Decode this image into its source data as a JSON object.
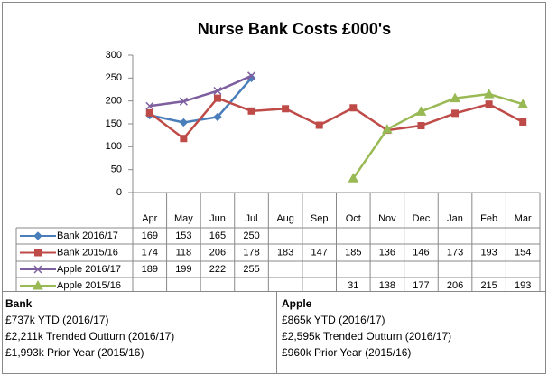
{
  "chart_data": {
    "type": "line",
    "title": "Nurse Bank Costs £000's",
    "categories": [
      "Apr",
      "May",
      "Jun",
      "Jul",
      "Aug",
      "Sep",
      "Oct",
      "Nov",
      "Dec",
      "Jan",
      "Feb",
      "Mar"
    ],
    "series": [
      {
        "name": "Bank 2016/17",
        "color": "#4a7ebb",
        "marker": "diamond",
        "values": [
          169,
          153,
          165,
          250,
          null,
          null,
          null,
          null,
          null,
          null,
          null,
          null
        ]
      },
      {
        "name": "Bank 2015/16",
        "color": "#be4b48",
        "marker": "square",
        "values": [
          174,
          118,
          206,
          178,
          183,
          147,
          185,
          136,
          146,
          173,
          193,
          154
        ]
      },
      {
        "name": "Apple 2016/17",
        "color": "#7d5fa0",
        "marker": "x",
        "values": [
          189,
          199,
          222,
          255,
          null,
          null,
          null,
          null,
          null,
          null,
          null,
          null
        ]
      },
      {
        "name": "Apple 2015/16",
        "color": "#98b954",
        "marker": "triangle",
        "values": [
          null,
          null,
          null,
          null,
          null,
          null,
          31,
          138,
          177,
          206,
          215,
          193
        ]
      }
    ],
    "ylim": [
      0,
      300
    ],
    "yticks": [
      0,
      50,
      100,
      150,
      200,
      250,
      300
    ],
    "grid": false,
    "data_table": true
  },
  "notes": [
    {
      "title": "Bank",
      "lines": [
        "£737k YTD (2016/17)",
        "£2,211k Trended Outturn (2016/17)",
        "£1,993k Prior Year (2015/16)"
      ]
    },
    {
      "title": "Apple",
      "lines": [
        "£865k YTD (2016/17)",
        "£2,595k Trended Outturn (2016/17)",
        "£960k Prior Year (2015/16)"
      ]
    }
  ]
}
